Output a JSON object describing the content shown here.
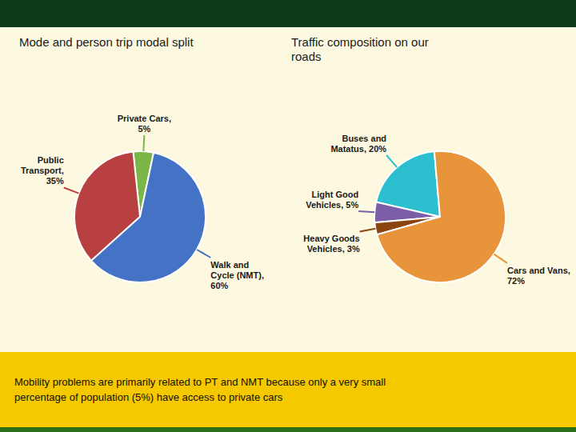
{
  "chart_data": [
    {
      "type": "pie",
      "title": "Mode and person trip modal split",
      "categories": [
        "Private Cars,\n5%",
        "Public\nTransport,\n35%",
        "Walk and\nCycle (NMT),\n60%"
      ],
      "values": [
        5,
        35,
        60
      ],
      "colors": [
        "#7ab648",
        "#b94040",
        "#4472c4"
      ],
      "annotations": [
        "Mobility problems are primarily related to PT and NMT because only a very small\npercentage of population (5%) have access to private cars"
      ]
    },
    {
      "type": "pie",
      "title": "Traffic composition on our\nroads",
      "categories": [
        "Buses and\nMatatus, 20%",
        "Light Good\nVehicles, 5%",
        "Heavy Goods\nVehicles, 3%",
        "Cars and Vans,\n72%"
      ],
      "values": [
        20,
        5,
        3,
        72
      ],
      "colors": [
        "#2bbfcf",
        "#7b5ea7",
        "#8b4513",
        "#e8943a"
      ]
    }
  ]
}
